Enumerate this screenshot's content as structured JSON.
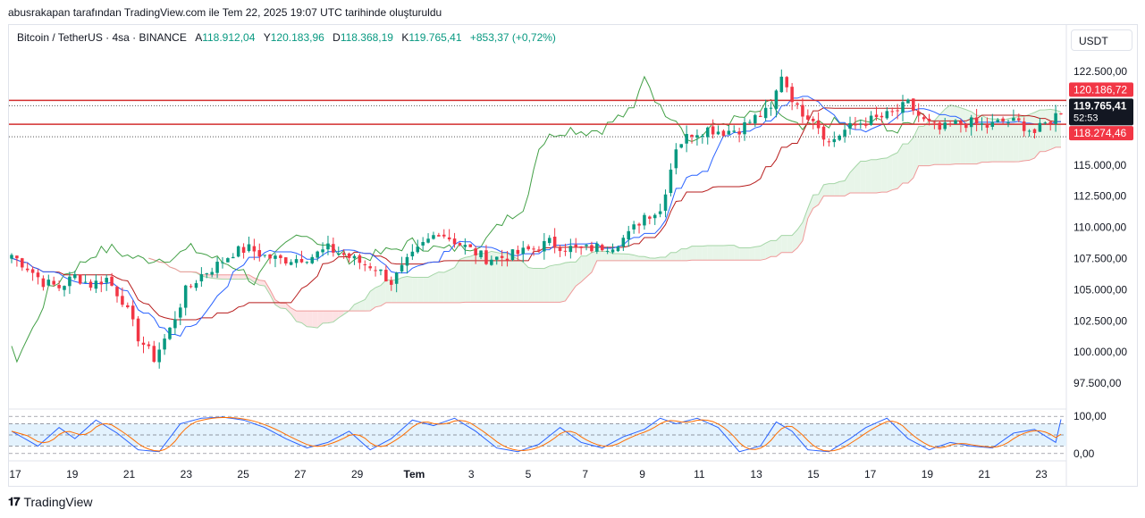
{
  "caption": "abusrakapan tarafından TradingView.com ile Tem 22, 2025 19:07 UTC tarihinde oluşturuldu",
  "legend": {
    "symbol": "Bitcoin / TetherUS · 4sa · BINANCE",
    "open_label": "A",
    "open": "118.912,04",
    "high_label": "Y",
    "high": "120.183,96",
    "low_label": "D",
    "low": "118.368,19",
    "close_label": "K",
    "close": "119.765,41",
    "change": "+853,37 (+0,72%)"
  },
  "currency_button": "USDT",
  "logo_text": "TradingView",
  "colors": {
    "up": "#089981",
    "down": "#f23645",
    "kijun": "#b71c1c",
    "tenkan": "#2962ff",
    "lagging": "#43a047",
    "cloud_green": "#e8f5e9",
    "cloud_red": "#fde2e4",
    "k_line": "#2962ff",
    "d_line": "#ff6d00",
    "hline": "#d32f2f"
  },
  "chart_data": {
    "type": "candlestick",
    "ylim": [
      96000,
      123800
    ],
    "y_ticks": [
      "122.500,00",
      "120.000,00",
      "117.500,00",
      "115.000,00",
      "112.500,00",
      "110.000,00",
      "107.500,00",
      "105.000,00",
      "102.500,00",
      "100.000,00",
      "97.500,00"
    ],
    "y_tick_values": [
      122500,
      120000,
      117500,
      115000,
      112500,
      110000,
      107500,
      105000,
      102500,
      100000,
      97500
    ],
    "x_ticks": [
      "17",
      "19",
      "21",
      "23",
      "25",
      "27",
      "29",
      "Tem",
      "3",
      "5",
      "7",
      "9",
      "11",
      "13",
      "15",
      "17",
      "19",
      "21",
      "23"
    ],
    "horizontal_lines": [
      120186.72,
      118274.46
    ],
    "price_labels": {
      "upper": "120.186,72",
      "last": "119.765,41",
      "countdown": "52:53",
      "lower": "118.274,46"
    },
    "ohlc_anchors": [
      [
        0,
        107800
      ],
      [
        3,
        106800
      ],
      [
        6,
        105600
      ],
      [
        9,
        105200
      ],
      [
        12,
        106100
      ],
      [
        15,
        105400
      ],
      [
        18,
        105900
      ],
      [
        21,
        104200
      ],
      [
        24,
        101200
      ],
      [
        27,
        99500
      ],
      [
        30,
        101800
      ],
      [
        33,
        104900
      ],
      [
        36,
        106200
      ],
      [
        39,
        107000
      ],
      [
        42,
        108000
      ],
      [
        45,
        108300
      ],
      [
        48,
        107700
      ],
      [
        51,
        107400
      ],
      [
        54,
        107500
      ],
      [
        57,
        107700
      ],
      [
        60,
        108300
      ],
      [
        63,
        107800
      ],
      [
        66,
        107200
      ],
      [
        69,
        106800
      ],
      [
        72,
        105600
      ],
      [
        75,
        107200
      ],
      [
        78,
        108600
      ],
      [
        81,
        109700
      ],
      [
        84,
        108900
      ],
      [
        87,
        108200
      ],
      [
        90,
        107500
      ],
      [
        93,
        107600
      ],
      [
        96,
        107900
      ],
      [
        99,
        108300
      ],
      [
        102,
        108800
      ],
      [
        105,
        108400
      ],
      [
        108,
        108200
      ],
      [
        111,
        108400
      ],
      [
        114,
        108600
      ],
      [
        117,
        109400
      ],
      [
        120,
        111000
      ],
      [
        123,
        111300
      ],
      [
        126,
        116500
      ],
      [
        129,
        117600
      ],
      [
        132,
        117900
      ],
      [
        135,
        117700
      ],
      [
        138,
        117900
      ],
      [
        141,
        118800
      ],
      [
        144,
        119400
      ],
      [
        146,
        122300
      ],
      [
        149,
        119500
      ],
      [
        152,
        118800
      ],
      [
        155,
        116800
      ],
      [
        158,
        117800
      ],
      [
        161,
        118400
      ],
      [
        164,
        118700
      ],
      [
        167,
        119100
      ],
      [
        170,
        119900
      ],
      [
        173,
        118500
      ],
      [
        176,
        117800
      ],
      [
        179,
        118300
      ],
      [
        182,
        118400
      ],
      [
        185,
        118100
      ],
      [
        188,
        118500
      ],
      [
        191,
        118400
      ],
      [
        194,
        117600
      ],
      [
        197,
        118600
      ],
      [
        199,
        119400
      ]
    ],
    "oscillator": {
      "y_ticks": [
        "100,00",
        "0,00"
      ],
      "ylim": [
        -10,
        110
      ],
      "band": [
        20,
        80
      ],
      "anchors": [
        [
          0,
          60
        ],
        [
          5,
          20
        ],
        [
          9,
          70
        ],
        [
          12,
          40
        ],
        [
          16,
          90
        ],
        [
          20,
          55
        ],
        [
          24,
          10
        ],
        [
          28,
          5
        ],
        [
          32,
          80
        ],
        [
          36,
          95
        ],
        [
          40,
          98
        ],
        [
          44,
          90
        ],
        [
          48,
          70
        ],
        [
          52,
          40
        ],
        [
          56,
          15
        ],
        [
          60,
          30
        ],
        [
          64,
          60
        ],
        [
          68,
          10
        ],
        [
          72,
          40
        ],
        [
          76,
          90
        ],
        [
          80,
          75
        ],
        [
          84,
          95
        ],
        [
          88,
          60
        ],
        [
          92,
          15
        ],
        [
          96,
          5
        ],
        [
          100,
          25
        ],
        [
          104,
          70
        ],
        [
          108,
          30
        ],
        [
          112,
          15
        ],
        [
          116,
          45
        ],
        [
          120,
          65
        ],
        [
          123,
          95
        ],
        [
          126,
          80
        ],
        [
          130,
          95
        ],
        [
          134,
          70
        ],
        [
          138,
          5
        ],
        [
          142,
          20
        ],
        [
          145,
          85
        ],
        [
          148,
          60
        ],
        [
          151,
          10
        ],
        [
          155,
          5
        ],
        [
          159,
          40
        ],
        [
          162,
          70
        ],
        [
          166,
          95
        ],
        [
          170,
          40
        ],
        [
          174,
          10
        ],
        [
          178,
          30
        ],
        [
          182,
          20
        ],
        [
          186,
          15
        ],
        [
          190,
          55
        ],
        [
          194,
          65
        ],
        [
          198,
          30
        ],
        [
          199,
          92
        ]
      ]
    }
  }
}
